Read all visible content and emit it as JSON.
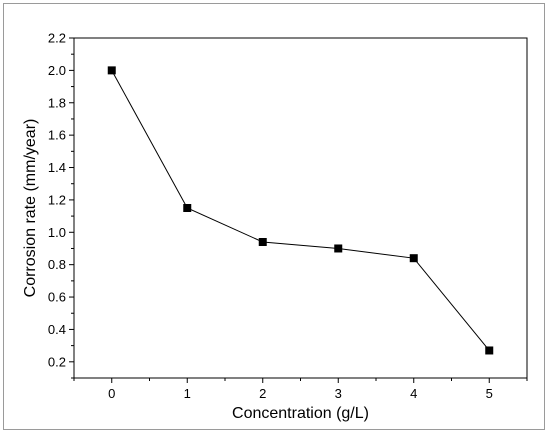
{
  "chart_data": {
    "type": "line",
    "title": "",
    "xlabel": "Concentration (g/L)",
    "ylabel": "Corrosion rate (mm/year)",
    "xlim": [
      -0.5,
      5.5
    ],
    "ylim": [
      0.1,
      2.2
    ],
    "x_ticks": [
      "0",
      "1",
      "2",
      "3",
      "4",
      "5"
    ],
    "y_ticks": [
      "0.2",
      "0.4",
      "0.6",
      "0.8",
      "1.0",
      "1.2",
      "1.4",
      "1.6",
      "1.8",
      "2.0",
      "2.2"
    ],
    "grid": false,
    "legend": "none",
    "marker": "filled-square",
    "series_color": "#000000",
    "x": [
      0,
      1,
      2,
      3,
      4,
      5
    ],
    "y": [
      2.0,
      1.15,
      0.94,
      0.9,
      0.84,
      0.27
    ]
  }
}
